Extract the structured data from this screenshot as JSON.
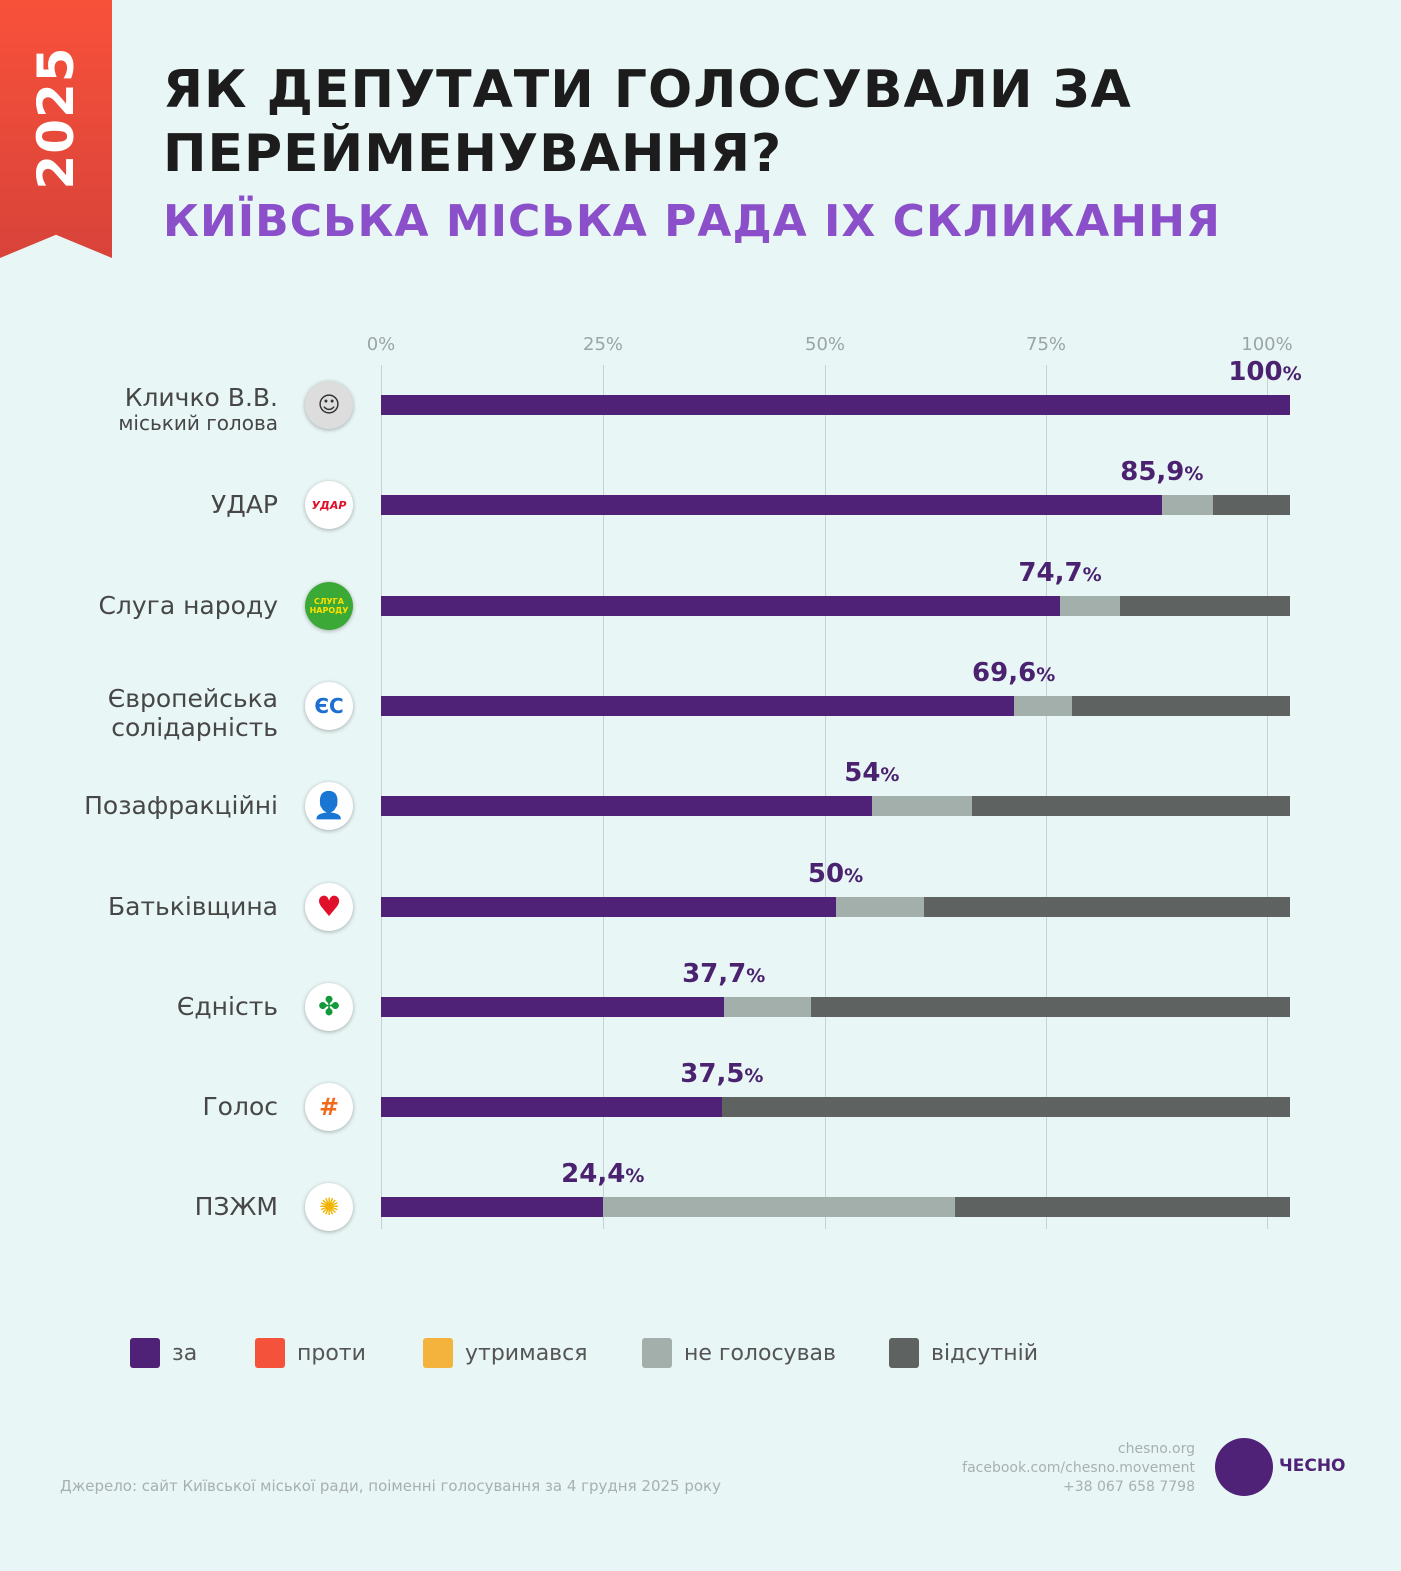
{
  "badge": "2025",
  "title": "ЯК ДЕПУТАТИ ГОЛОСУВАЛИ ЗА ПЕРЕЙМЕНУВАННЯ?",
  "subtitle": "КИЇВСЬКА МІСЬКА РАДА IX СКЛИКАННЯ",
  "colors": {
    "za": "#4f2277",
    "proty": "#f4523a",
    "utrymavsia": "#f3b33d",
    "ne_holosuvav": "#a3afab",
    "vidsutnii": "#5e6362"
  },
  "chart_data": {
    "type": "bar",
    "stacked": true,
    "orientation": "horizontal",
    "xticks": [
      "0%",
      "25%",
      "50%",
      "75%",
      "100%"
    ],
    "xlim": [
      0,
      100
    ],
    "series_names": [
      "за",
      "проти",
      "утримався",
      "не голосував",
      "відсутній"
    ],
    "rows": [
      {
        "name": "Кличко В.В.",
        "sub": "міський голова",
        "logo": "portrait",
        "za": 100,
        "ne": 0,
        "vid": 0,
        "label": "100",
        "pct": "%"
      },
      {
        "name": "УДАР",
        "logo": "УДАР",
        "za": 85.9,
        "ne": 5.6,
        "vid": 8.5,
        "label": "85,9",
        "pct": "%"
      },
      {
        "name": "Слуга народу",
        "logo": "СЛУГА НАРОДУ",
        "za": 74.7,
        "ne": 6.6,
        "vid": 18.7,
        "label": "74,7",
        "pct": "%"
      },
      {
        "name": "Європейська солідарність",
        "logo": "ЄС",
        "za": 69.6,
        "ne": 6.4,
        "vid": 24.0,
        "label": "69,6",
        "pct": "%"
      },
      {
        "name": "Позафракційні",
        "logo": "person",
        "za": 54,
        "ne": 11,
        "vid": 35,
        "label": "54",
        "pct": "%"
      },
      {
        "name": "Батьківщина",
        "logo": "heart",
        "za": 50,
        "ne": 9.7,
        "vid": 40.3,
        "label": "50",
        "pct": "%"
      },
      {
        "name": "Єдність",
        "logo": "chestnut-leaf",
        "za": 37.7,
        "ne": 9.6,
        "vid": 52.7,
        "label": "37,7",
        "pct": "%"
      },
      {
        "name": "Голос",
        "logo": "holos",
        "za": 37.5,
        "ne": 0,
        "vid": 62.5,
        "label": "37,5",
        "pct": "%"
      },
      {
        "name": "ПЗЖМ",
        "logo": "sunflower-dove",
        "za": 24.4,
        "ne": 38.8,
        "vid": 36.8,
        "label": "24,4",
        "pct": "%"
      }
    ]
  },
  "legend": [
    "за",
    "проти",
    "утримався",
    "не голосував",
    "відсутній"
  ],
  "footer": {
    "source": "Джерело: сайт Київської міської ради, поіменні голосування за 4 грудня 2025 року",
    "site": "chesno.org",
    "facebook": "facebook.com/chesno.movement",
    "phone": "+38 067 658 7798",
    "brand": "ЧЕСНО"
  }
}
